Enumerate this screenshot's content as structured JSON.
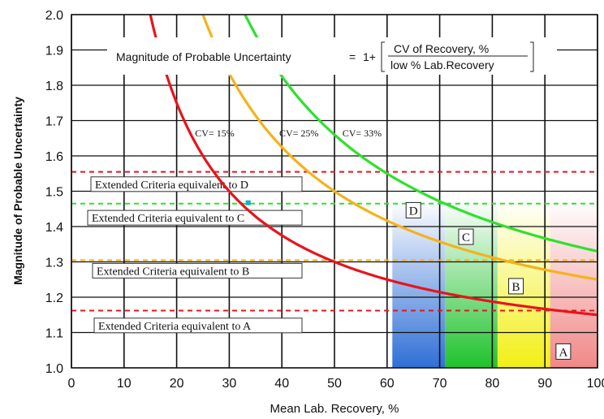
{
  "chart_data": {
    "type": "line",
    "title": "",
    "xlabel": "Mean Lab. Recovery, %",
    "ylabel": "Magnitude of Probable Uncertainty",
    "xlim": [
      0,
      100
    ],
    "ylim": [
      1.0,
      2.0
    ],
    "x_ticks": [
      "0",
      "10",
      "20",
      "30",
      "40",
      "50",
      "60",
      "70",
      "80",
      "90",
      "100"
    ],
    "y_ticks": [
      "1.0",
      "1.1",
      "1.2",
      "1.3",
      "1.4",
      "1.5",
      "1.6",
      "1.7",
      "1.8",
      "1.9",
      "2.0"
    ],
    "grid": true,
    "formula": {
      "lhs": "Magnitude of Probable Uncertainty",
      "eq": "=",
      "one_plus": "1+",
      "numerator": "CV of Recovery, %",
      "denominator": "low % Lab.Recovery"
    },
    "series": [
      {
        "name": "CV= 15%",
        "color": "#e8141c",
        "cv": 15,
        "x": [
          16,
          20,
          25,
          30,
          35,
          40,
          45,
          50,
          55,
          60,
          65,
          70,
          75,
          80,
          85,
          90,
          95,
          100
        ],
        "y": [
          1.938,
          1.75,
          1.6,
          1.5,
          1.429,
          1.375,
          1.333,
          1.3,
          1.273,
          1.25,
          1.231,
          1.214,
          1.2,
          1.188,
          1.176,
          1.167,
          1.158,
          1.15
        ]
      },
      {
        "name": "CV= 25%",
        "color": "#f5b21b",
        "cv": 25,
        "x": [
          26,
          30,
          35,
          40,
          45,
          50,
          55,
          60,
          65,
          70,
          75,
          80,
          85,
          90,
          95,
          100
        ],
        "y": [
          1.962,
          1.833,
          1.714,
          1.625,
          1.556,
          1.5,
          1.455,
          1.417,
          1.385,
          1.357,
          1.333,
          1.313,
          1.294,
          1.278,
          1.263,
          1.25
        ]
      },
      {
        "name": "CV= 33%",
        "color": "#2ee02e",
        "cv": 33,
        "x": [
          34,
          40,
          45,
          50,
          55,
          60,
          65,
          70,
          75,
          80,
          85,
          90,
          95,
          100
        ],
        "y": [
          1.971,
          1.825,
          1.733,
          1.66,
          1.6,
          1.55,
          1.508,
          1.471,
          1.44,
          1.413,
          1.388,
          1.367,
          1.347,
          1.33
        ]
      }
    ],
    "reference_lines": [
      {
        "y": 1.555,
        "color": "#e8141c",
        "style": "dashed"
      },
      {
        "y": 1.465,
        "color": "#2ee02e",
        "style": "dashed"
      },
      {
        "y": 1.305,
        "color": "#f5b21b",
        "style": "dashed"
      },
      {
        "y": 1.162,
        "color": "#e8141c",
        "style": "dashed"
      }
    ],
    "criteria_labels": [
      {
        "text": "Extended Criteria equivalent to D",
        "y": 1.52
      },
      {
        "text": "Extended Criteria equivalent to C",
        "y": 1.425
      },
      {
        "text": "Extended Criteria equivalent to B",
        "y": 1.275
      },
      {
        "text": "Extended Criteria equivalent to A",
        "y": 1.12
      }
    ],
    "zones": [
      {
        "label": "D",
        "x_from": 61,
        "x_to": 71,
        "color": "#3d7fe0"
      },
      {
        "label": "C",
        "x_from": 71,
        "x_to": 81,
        "color": "#2dcf3a"
      },
      {
        "label": "B",
        "x_from": 81,
        "x_to": 91,
        "color": "#f2f020"
      },
      {
        "label": "A",
        "x_from": 91,
        "x_to": 100,
        "color": "#f08a8a"
      }
    ],
    "zone_markers": [
      {
        "label": "D",
        "x": 65,
        "y": 1.445
      },
      {
        "label": "C",
        "x": 75,
        "y": 1.37
      },
      {
        "label": "B",
        "x": 84.5,
        "y": 1.23
      },
      {
        "label": "A",
        "x": 93.5,
        "y": 1.045
      }
    ],
    "cv_labels": [
      {
        "text": "CV= 15%",
        "x": 23.5,
        "y": 1.655
      },
      {
        "text": "CV= 25%",
        "x": 39.5,
        "y": 1.655
      },
      {
        "text": "CV= 33%",
        "x": 51.5,
        "y": 1.655
      }
    ]
  }
}
